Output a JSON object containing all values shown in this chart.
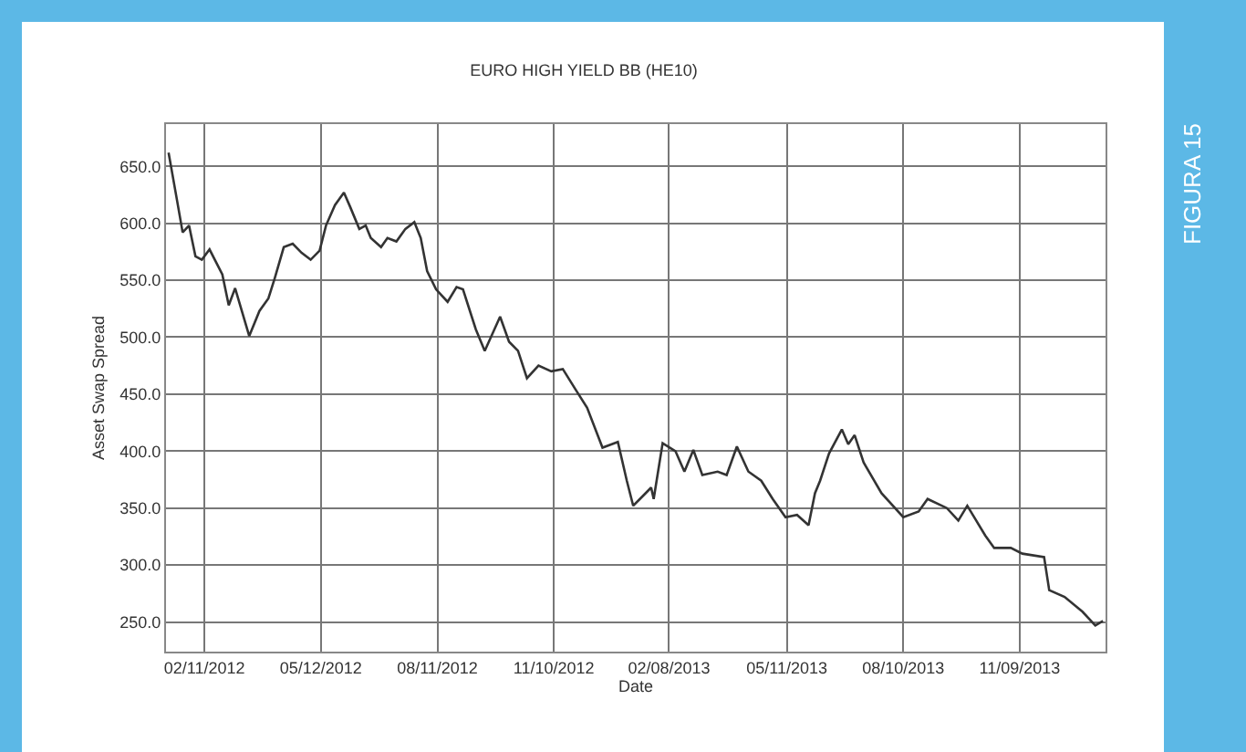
{
  "chart_data": {
    "type": "line",
    "title": "EURO HIGH YIELD BB (HE10)",
    "xlabel": "Date",
    "ylabel": "Asset Swap Spread",
    "annotations": [
      "FIGURA 15"
    ],
    "x": [
      "2012-01-14",
      "2012-01-20",
      "2012-01-25",
      "2012-01-30",
      "2012-02-04",
      "2012-02-09",
      "2012-02-15",
      "2012-02-25",
      "2012-03-01",
      "2012-03-06",
      "2012-03-17",
      "2012-03-25",
      "2012-04-01",
      "2012-04-06",
      "2012-04-13",
      "2012-04-20",
      "2012-04-27",
      "2012-05-04",
      "2012-05-11",
      "2012-05-16",
      "2012-05-23",
      "2012-05-30",
      "2012-06-04",
      "2012-06-11",
      "2012-06-16",
      "2012-06-20",
      "2012-06-28",
      "2012-07-03",
      "2012-07-10",
      "2012-07-17",
      "2012-07-24",
      "2012-07-29",
      "2012-08-03",
      "2012-08-10",
      "2012-08-19",
      "2012-08-26",
      "2012-08-31",
      "2012-09-10",
      "2012-09-17",
      "2012-09-29",
      "2012-10-06",
      "2012-10-13",
      "2012-10-20",
      "2012-10-29",
      "2012-11-08",
      "2012-11-17",
      "2012-11-27",
      "2012-12-06",
      "2012-12-18",
      "2012-12-30",
      "2013-01-06",
      "2013-01-11",
      "2013-01-18",
      "2013-01-25",
      "2013-01-27",
      "2013-02-03",
      "2013-02-13",
      "2013-02-20",
      "2013-02-27",
      "2013-03-06",
      "2013-03-18",
      "2013-03-25",
      "2013-04-02",
      "2013-04-11",
      "2013-04-21",
      "2013-04-30",
      "2013-05-10",
      "2013-05-19",
      "2013-05-28",
      "2013-06-02",
      "2013-06-06",
      "2013-06-13",
      "2013-06-23",
      "2013-06-28",
      "2013-07-03",
      "2013-07-10",
      "2013-07-24",
      "2013-08-10",
      "2013-08-22",
      "2013-08-29",
      "2013-09-13",
      "2013-09-22",
      "2013-09-29",
      "2013-10-13",
      "2013-10-20",
      "2013-11-02",
      "2013-11-11",
      "2013-11-28",
      "2013-12-02",
      "2013-12-14",
      "2013-12-28",
      "2014-01-07",
      "2014-01-13"
    ],
    "series": [
      {
        "color": "#333333",
        "values": [
          662,
          624,
          592,
          598,
          571,
          568,
          577,
          555,
          528,
          543,
          501,
          523,
          534,
          552,
          579,
          582,
          574,
          568,
          576,
          598,
          616,
          627,
          614,
          595,
          598,
          587,
          579,
          587,
          584,
          595,
          601,
          587,
          558,
          542,
          531,
          544,
          542,
          507,
          488,
          518,
          496,
          488,
          464,
          475,
          470,
          472,
          454,
          438,
          403,
          408,
          374,
          352,
          360,
          368,
          358,
          407,
          400,
          382,
          401,
          379,
          382,
          379,
          404,
          382,
          374,
          358,
          342,
          344,
          335,
          363,
          374,
          398,
          419,
          406,
          414,
          390,
          363,
          342,
          347,
          358,
          350,
          339,
          352,
          326,
          315,
          315,
          310,
          307,
          278,
          272,
          259,
          247,
          251
        ]
      }
    ],
    "xlim": [
      "2012-01-12",
      "2014-01-15"
    ],
    "xticks": [
      {
        "value": "2012-02-11",
        "label": "02/11/2012"
      },
      {
        "value": "2012-05-12",
        "label": "05/12/2012"
      },
      {
        "value": "2012-08-11",
        "label": "08/11/2012"
      },
      {
        "value": "2012-11-10",
        "label": "11/10/2012"
      },
      {
        "value": "2013-02-08",
        "label": "02/08/2013"
      },
      {
        "value": "2013-05-11",
        "label": "05/11/2013"
      },
      {
        "value": "2013-08-10",
        "label": "08/10/2013"
      },
      {
        "value": "2013-11-09",
        "label": "11/09/2013"
      }
    ],
    "ylim": [
      224,
      687
    ],
    "yticks": [
      {
        "value": 250,
        "label": "250.0"
      },
      {
        "value": 300,
        "label": "300.0"
      },
      {
        "value": 350,
        "label": "350.0"
      },
      {
        "value": 400,
        "label": "400.0"
      },
      {
        "value": 450,
        "label": "450.0"
      },
      {
        "value": 500,
        "label": "500.0"
      },
      {
        "value": 550,
        "label": "550.0"
      },
      {
        "value": 600,
        "label": "600.0"
      },
      {
        "value": 650,
        "label": "650.0"
      }
    ],
    "grid": true,
    "marker": "none",
    "line_style": "solid"
  }
}
